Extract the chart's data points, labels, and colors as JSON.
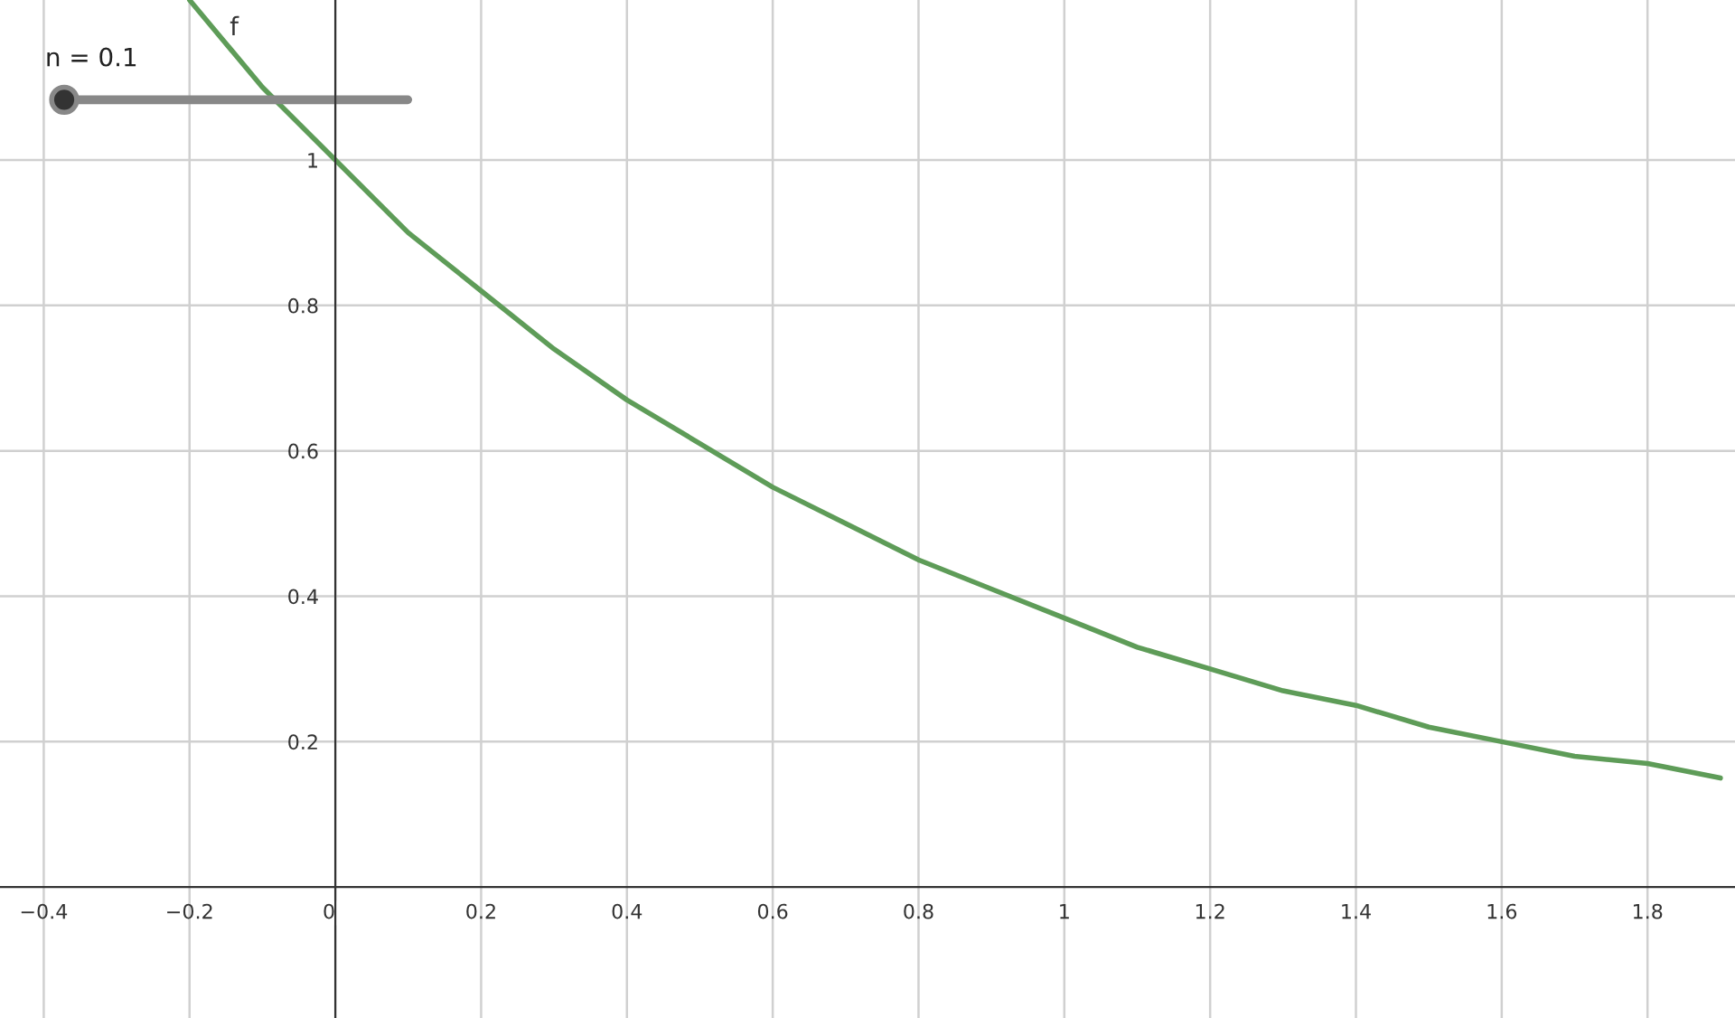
{
  "chart_data": {
    "type": "line",
    "x": [
      -0.2,
      -0.1,
      0,
      0.1,
      0.2,
      0.3,
      0.4,
      0.5,
      0.6,
      0.7,
      0.8,
      0.9,
      1.0,
      1.1,
      1.2,
      1.3,
      1.4,
      1.5,
      1.6,
      1.7,
      1.8,
      1.9
    ],
    "series": [
      {
        "name": "f",
        "color": "#5e9c58",
        "values": [
          1.22,
          1.1,
          1.0,
          0.9,
          0.82,
          0.74,
          0.67,
          0.61,
          0.55,
          0.5,
          0.45,
          0.41,
          0.37,
          0.33,
          0.3,
          0.27,
          0.25,
          0.22,
          0.2,
          0.18,
          0.17,
          0.15
        ]
      }
    ],
    "xlim": [
      -0.46,
      1.92
    ],
    "ylim": [
      -0.18,
      1.22
    ],
    "xticks": [
      {
        "value": -0.4,
        "label": "−0.4"
      },
      {
        "value": -0.2,
        "label": "−0.2"
      },
      0,
      0.2,
      0.4,
      0.6,
      0.8,
      1,
      1.2,
      1.4,
      1.6,
      1.8
    ],
    "yticks": [
      0.2,
      0.4,
      0.6,
      0.8,
      1
    ],
    "grid": true,
    "marker": "none",
    "line_style": "solid",
    "annotations": [
      "n = 0.1"
    ]
  }
}
